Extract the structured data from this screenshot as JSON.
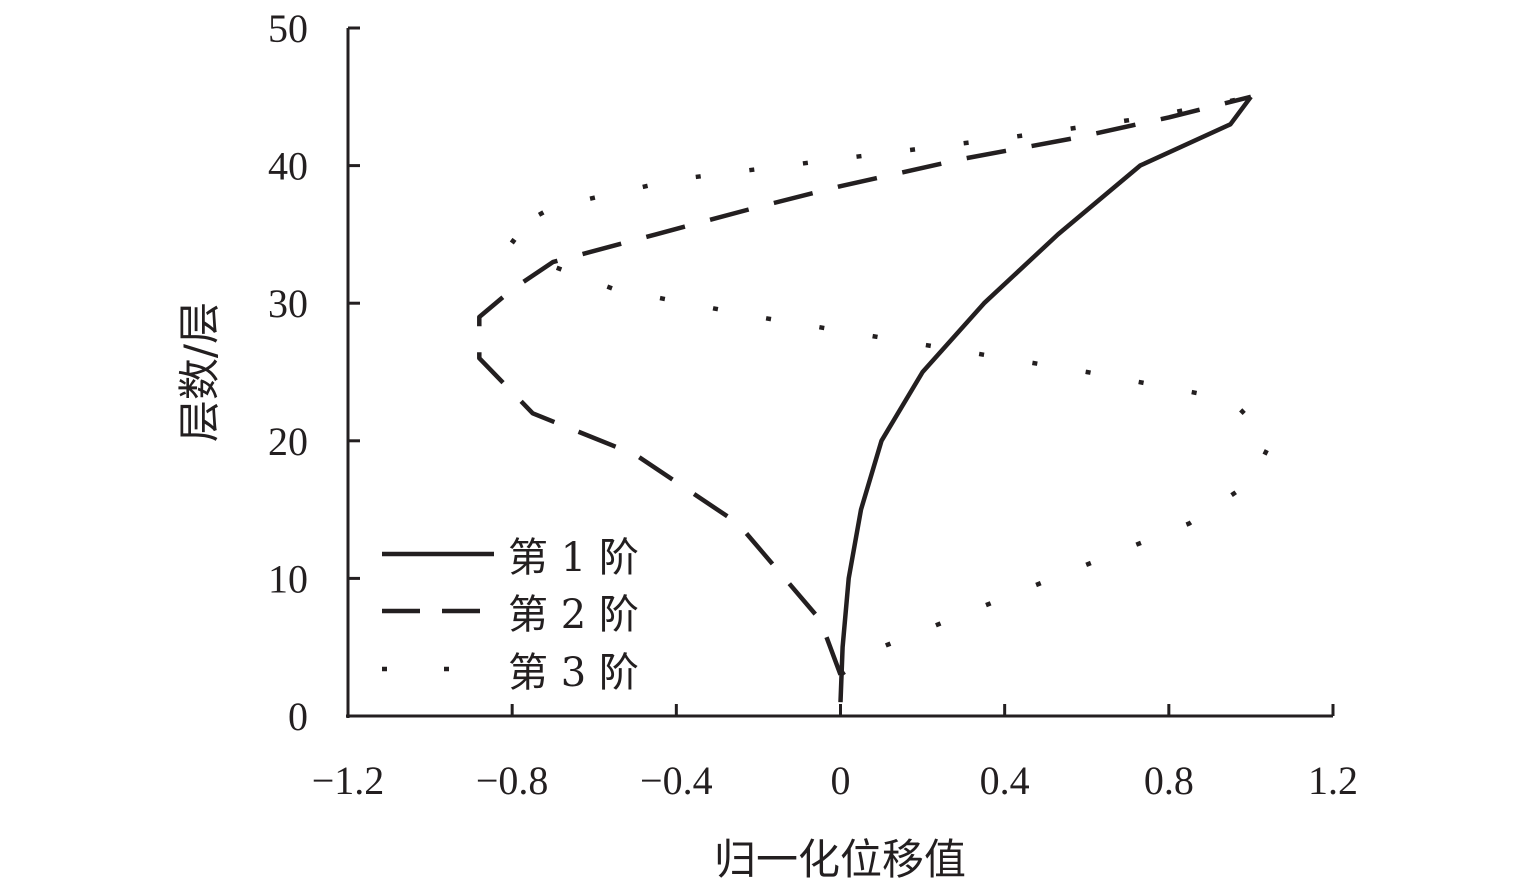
{
  "chart_data": {
    "type": "line",
    "title": "",
    "xlabel": "归一化位移值",
    "ylabel": "层数/层",
    "xlim": [
      -1.2,
      1.2
    ],
    "ylim": [
      0,
      50
    ],
    "x_ticks": [
      -1.2,
      -0.8,
      -0.4,
      0,
      0.4,
      0.8,
      1.2
    ],
    "x_tick_labels": [
      "−1.2",
      "−0.8",
      "−0.4",
      "0",
      "0.4",
      "0.8",
      "1.2"
    ],
    "y_ticks": [
      0,
      10,
      20,
      30,
      40,
      50
    ],
    "y_tick_labels": [
      "0",
      "10",
      "20",
      "30",
      "40",
      "50"
    ],
    "grid": false,
    "legend_position": "bottom-left",
    "series": [
      {
        "name": "第 1 阶",
        "style": "solid",
        "points": [
          {
            "x": 0.0,
            "y": 1
          },
          {
            "x": 0.005,
            "y": 5
          },
          {
            "x": 0.02,
            "y": 10
          },
          {
            "x": 0.05,
            "y": 15
          },
          {
            "x": 0.1,
            "y": 20
          },
          {
            "x": 0.2,
            "y": 25
          },
          {
            "x": 0.35,
            "y": 30
          },
          {
            "x": 0.53,
            "y": 35
          },
          {
            "x": 0.73,
            "y": 40
          },
          {
            "x": 0.95,
            "y": 43
          },
          {
            "x": 1.0,
            "y": 45
          }
        ]
      },
      {
        "name": "第 2 阶",
        "style": "dashed",
        "points": [
          {
            "x": 0.0,
            "y": 3
          },
          {
            "x": -0.05,
            "y": 7
          },
          {
            "x": -0.25,
            "y": 14
          },
          {
            "x": -0.5,
            "y": 19
          },
          {
            "x": -0.75,
            "y": 22
          },
          {
            "x": -0.88,
            "y": 26
          },
          {
            "x": -0.88,
            "y": 29
          },
          {
            "x": -0.8,
            "y": 31
          },
          {
            "x": -0.7,
            "y": 33
          },
          {
            "x": -0.45,
            "y": 35
          },
          {
            "x": -0.2,
            "y": 37
          },
          {
            "x": 0.0,
            "y": 38.5
          },
          {
            "x": 0.3,
            "y": 40.5
          },
          {
            "x": 0.57,
            "y": 42
          },
          {
            "x": 0.8,
            "y": 43.5
          },
          {
            "x": 1.0,
            "y": 45
          }
        ]
      },
      {
        "name": "第 3 阶",
        "style": "dotted",
        "points": [
          {
            "x": 0.0,
            "y": 3
          },
          {
            "x": 0.1,
            "y": 5
          },
          {
            "x": 0.35,
            "y": 8
          },
          {
            "x": 0.6,
            "y": 11
          },
          {
            "x": 0.85,
            "y": 14
          },
          {
            "x": 1.0,
            "y": 17
          },
          {
            "x": 1.05,
            "y": 20
          },
          {
            "x": 0.95,
            "y": 23
          },
          {
            "x": 0.6,
            "y": 25
          },
          {
            "x": 0.2,
            "y": 27
          },
          {
            "x": -0.2,
            "y": 29
          },
          {
            "x": -0.55,
            "y": 31
          },
          {
            "x": -0.73,
            "y": 33
          },
          {
            "x": -0.82,
            "y": 35
          },
          {
            "x": -0.7,
            "y": 37
          },
          {
            "x": -0.4,
            "y": 39
          },
          {
            "x": 0.0,
            "y": 40.5
          },
          {
            "x": 0.4,
            "y": 42
          },
          {
            "x": 0.75,
            "y": 43.5
          },
          {
            "x": 1.0,
            "y": 45
          }
        ]
      }
    ]
  }
}
